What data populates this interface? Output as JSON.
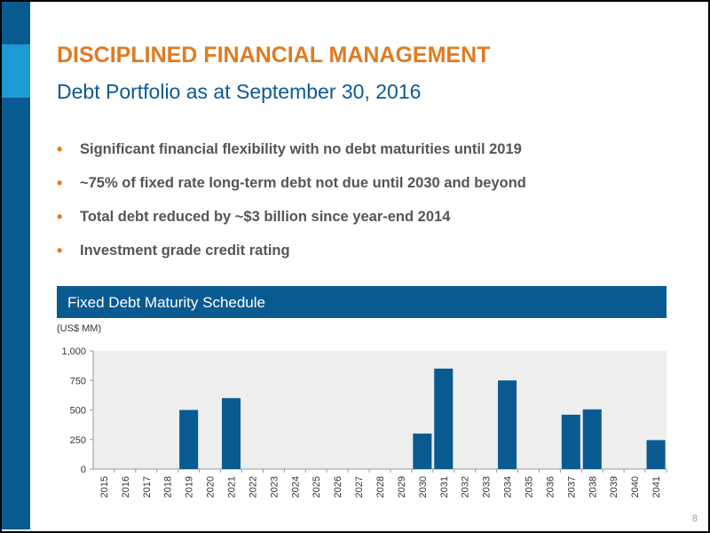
{
  "slide": {
    "title": "DISCIPLINED FINANCIAL MANAGEMENT",
    "subtitle": "Debt Portfolio as at September 30, 2016",
    "bullets": [
      "Significant financial flexibility with no debt maturities until 2019",
      "~75% of fixed rate long-term debt not due until 2030 and beyond",
      "Total debt reduced by ~$3 billion since year-end 2014",
      "Investment grade credit rating"
    ],
    "section_title": "Fixed Debt Maturity Schedule",
    "units": "(US$ MM)",
    "page_number": "8"
  },
  "colors": {
    "accent_orange": "#e07b22",
    "brand_blue": "#0a5a92",
    "bar_blue": "#0a5a92",
    "plot_bg": "#eeeeee"
  },
  "chart_data": {
    "type": "bar",
    "title": "Fixed Debt Maturity Schedule",
    "ylabel": "(US$ MM)",
    "xlabel": "",
    "ylim": [
      0,
      1000
    ],
    "yticks": [
      "0",
      "250",
      "500",
      "750",
      "1,000"
    ],
    "ytick_values": [
      0,
      250,
      500,
      750,
      1000
    ],
    "categories": [
      "2015",
      "2016",
      "2017",
      "2018",
      "2019",
      "2020",
      "2021",
      "2022",
      "2023",
      "2024",
      "2025",
      "2026",
      "2027",
      "2028",
      "2029",
      "2030",
      "2031",
      "2032",
      "2033",
      "2034",
      "2035",
      "2036",
      "2037",
      "2038",
      "2039",
      "2040",
      "2041"
    ],
    "values": [
      0,
      0,
      0,
      0,
      500,
      0,
      600,
      0,
      0,
      0,
      0,
      0,
      0,
      0,
      0,
      300,
      850,
      0,
      0,
      750,
      0,
      0,
      460,
      505,
      0,
      0,
      245
    ],
    "grid": false
  }
}
